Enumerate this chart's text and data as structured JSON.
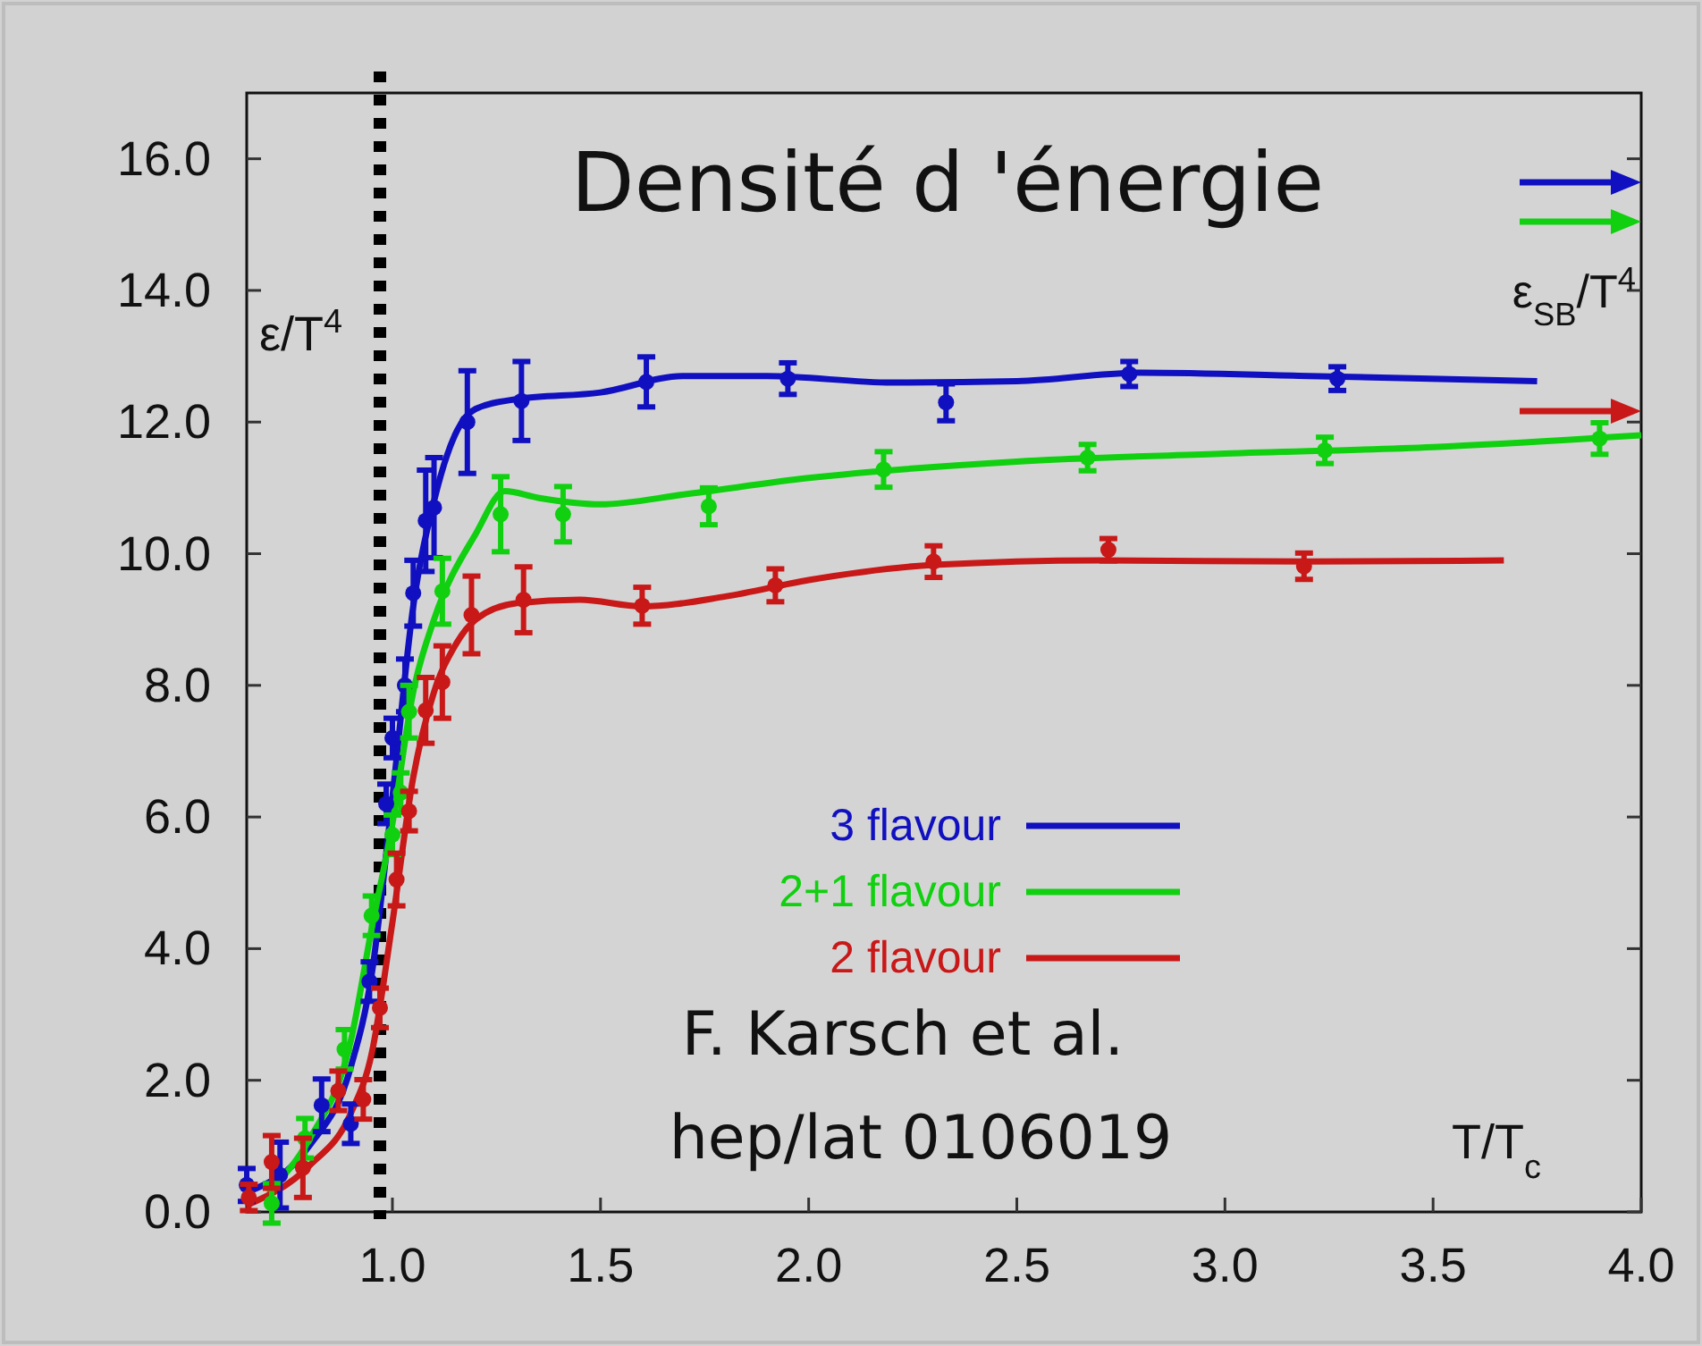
{
  "chart_data": {
    "type": "line",
    "title": "Densité d 'énergie",
    "xlabel": "T/T$_{c}$",
    "ylabel": "ε/T$^{4}$",
    "annotations": [
      "ε$_{SB}$/T$^{4}$",
      "F. Karsch et al.",
      "hep/lat 0106019"
    ],
    "xlim": [
      0.65,
      4.0
    ],
    "ylim": [
      0,
      17
    ],
    "xticks": [
      {
        "value": 1.0,
        "label": "1.0"
      },
      {
        "value": 1.5,
        "label": "1.5"
      },
      {
        "value": 2.0,
        "label": "2.0"
      },
      {
        "value": 2.5,
        "label": "2.5"
      },
      {
        "value": 3.0,
        "label": "3.0"
      },
      {
        "value": 3.5,
        "label": "3.5"
      },
      {
        "value": 4.0,
        "label": "4.0"
      }
    ],
    "yticks": [
      {
        "value": 0,
        "label": "0.0"
      },
      {
        "value": 2,
        "label": "2.0"
      },
      {
        "value": 4,
        "label": "4.0"
      },
      {
        "value": 6,
        "label": "6.0"
      },
      {
        "value": 8,
        "label": "8.0"
      },
      {
        "value": 10,
        "label": "10.0"
      },
      {
        "value": 12,
        "label": "12.0"
      },
      {
        "value": 14,
        "label": "14.0"
      },
      {
        "value": 16,
        "label": "16.0"
      }
    ],
    "grid": false,
    "legend": "bottom",
    "line_style": "solid",
    "ref_lines": [
      {
        "axis": "x",
        "value": 0.97,
        "color": "#000000",
        "line_style": "dotted"
      }
    ],
    "series": [
      {
        "name": "3 flavour",
        "color": "#1010c0",
        "x": [
          0.65,
          0.8,
          0.9,
          0.95,
          1.0,
          1.05,
          1.1,
          1.15,
          1.2,
          1.3,
          1.5,
          1.7,
          1.9,
          2.2,
          2.5,
          2.8,
          3.2,
          3.75
        ],
        "values": [
          0.3,
          1.0,
          2.2,
          3.6,
          6.3,
          9.2,
          10.8,
          11.8,
          12.2,
          12.35,
          12.45,
          12.7,
          12.7,
          12.6,
          12.62,
          12.75,
          12.7,
          12.62
        ]
      },
      {
        "name": "2+1 flavour",
        "color": "#10d010",
        "x": [
          0.7,
          0.8,
          0.9,
          0.95,
          1.0,
          1.05,
          1.1,
          1.2,
          1.27,
          1.35,
          1.5,
          1.7,
          2.0,
          2.5,
          3.0,
          3.5,
          4.0
        ],
        "values": [
          0.3,
          1.1,
          2.6,
          4.3,
          5.9,
          7.9,
          9.0,
          10.3,
          10.95,
          10.85,
          10.75,
          10.9,
          11.15,
          11.4,
          11.52,
          11.62,
          11.8
        ]
      },
      {
        "name": "2 flavour",
        "color": "#c81818",
        "x": [
          0.65,
          0.8,
          0.9,
          0.95,
          1.0,
          1.05,
          1.1,
          1.15,
          1.2,
          1.3,
          1.45,
          1.6,
          1.8,
          2.0,
          2.3,
          2.7,
          3.2,
          3.67
        ],
        "values": [
          0.1,
          0.7,
          1.5,
          2.4,
          4.4,
          6.6,
          7.9,
          8.6,
          9.0,
          9.25,
          9.3,
          9.2,
          9.35,
          9.6,
          9.83,
          9.9,
          9.88,
          9.9
        ]
      },
      {
        "type": "scatter",
        "color": "#1010c0",
        "marker": "circle",
        "x": [
          0.65,
          0.73,
          0.83,
          0.9,
          0.945,
          0.985,
          1.0,
          1.03,
          1.05,
          1.08,
          1.1,
          1.18,
          1.31,
          1.61,
          1.95,
          2.33,
          2.77,
          3.27
        ],
        "values": [
          0.41,
          0.56,
          1.62,
          1.34,
          3.5,
          6.2,
          7.2,
          8.0,
          9.4,
          10.5,
          10.7,
          12.0,
          12.32,
          12.61,
          12.66,
          12.3,
          12.73,
          12.66
        ],
        "errors": [
          0.25,
          0.5,
          0.4,
          0.3,
          0.3,
          0.3,
          0.3,
          0.4,
          0.5,
          0.77,
          0.76,
          0.78,
          0.6,
          0.38,
          0.24,
          0.28,
          0.19,
          0.18
        ]
      },
      {
        "type": "scatter",
        "color": "#10d010",
        "marker": "circle",
        "x": [
          0.71,
          0.79,
          0.885,
          0.95,
          1.0,
          1.02,
          1.04,
          1.12,
          1.26,
          1.41,
          1.76,
          2.18,
          2.67,
          3.24,
          3.9
        ],
        "values": [
          0.13,
          1.12,
          2.47,
          4.5,
          5.73,
          6.37,
          7.6,
          9.43,
          10.6,
          10.6,
          10.72,
          11.28,
          11.46,
          11.57,
          11.75
        ],
        "errors": [
          0.3,
          0.3,
          0.3,
          0.3,
          0.3,
          0.3,
          0.4,
          0.5,
          0.57,
          0.42,
          0.28,
          0.27,
          0.2,
          0.2,
          0.24
        ]
      },
      {
        "type": "scatter",
        "color": "#c81818",
        "marker": "circle",
        "x": [
          0.655,
          0.71,
          0.785,
          0.87,
          0.93,
          0.97,
          1.01,
          1.04,
          1.08,
          1.12,
          1.19,
          1.315,
          1.6,
          1.92,
          2.3,
          2.72,
          3.19
        ],
        "values": [
          0.22,
          0.76,
          0.67,
          1.84,
          1.71,
          3.1,
          5.05,
          6.09,
          7.62,
          8.05,
          9.07,
          9.3,
          9.21,
          9.52,
          9.88,
          10.06,
          9.81
        ],
        "errors": [
          0.2,
          0.4,
          0.45,
          0.3,
          0.3,
          0.3,
          0.4,
          0.3,
          0.5,
          0.55,
          0.59,
          0.5,
          0.28,
          0.25,
          0.24,
          0.17,
          0.2
        ]
      }
    ]
  }
}
